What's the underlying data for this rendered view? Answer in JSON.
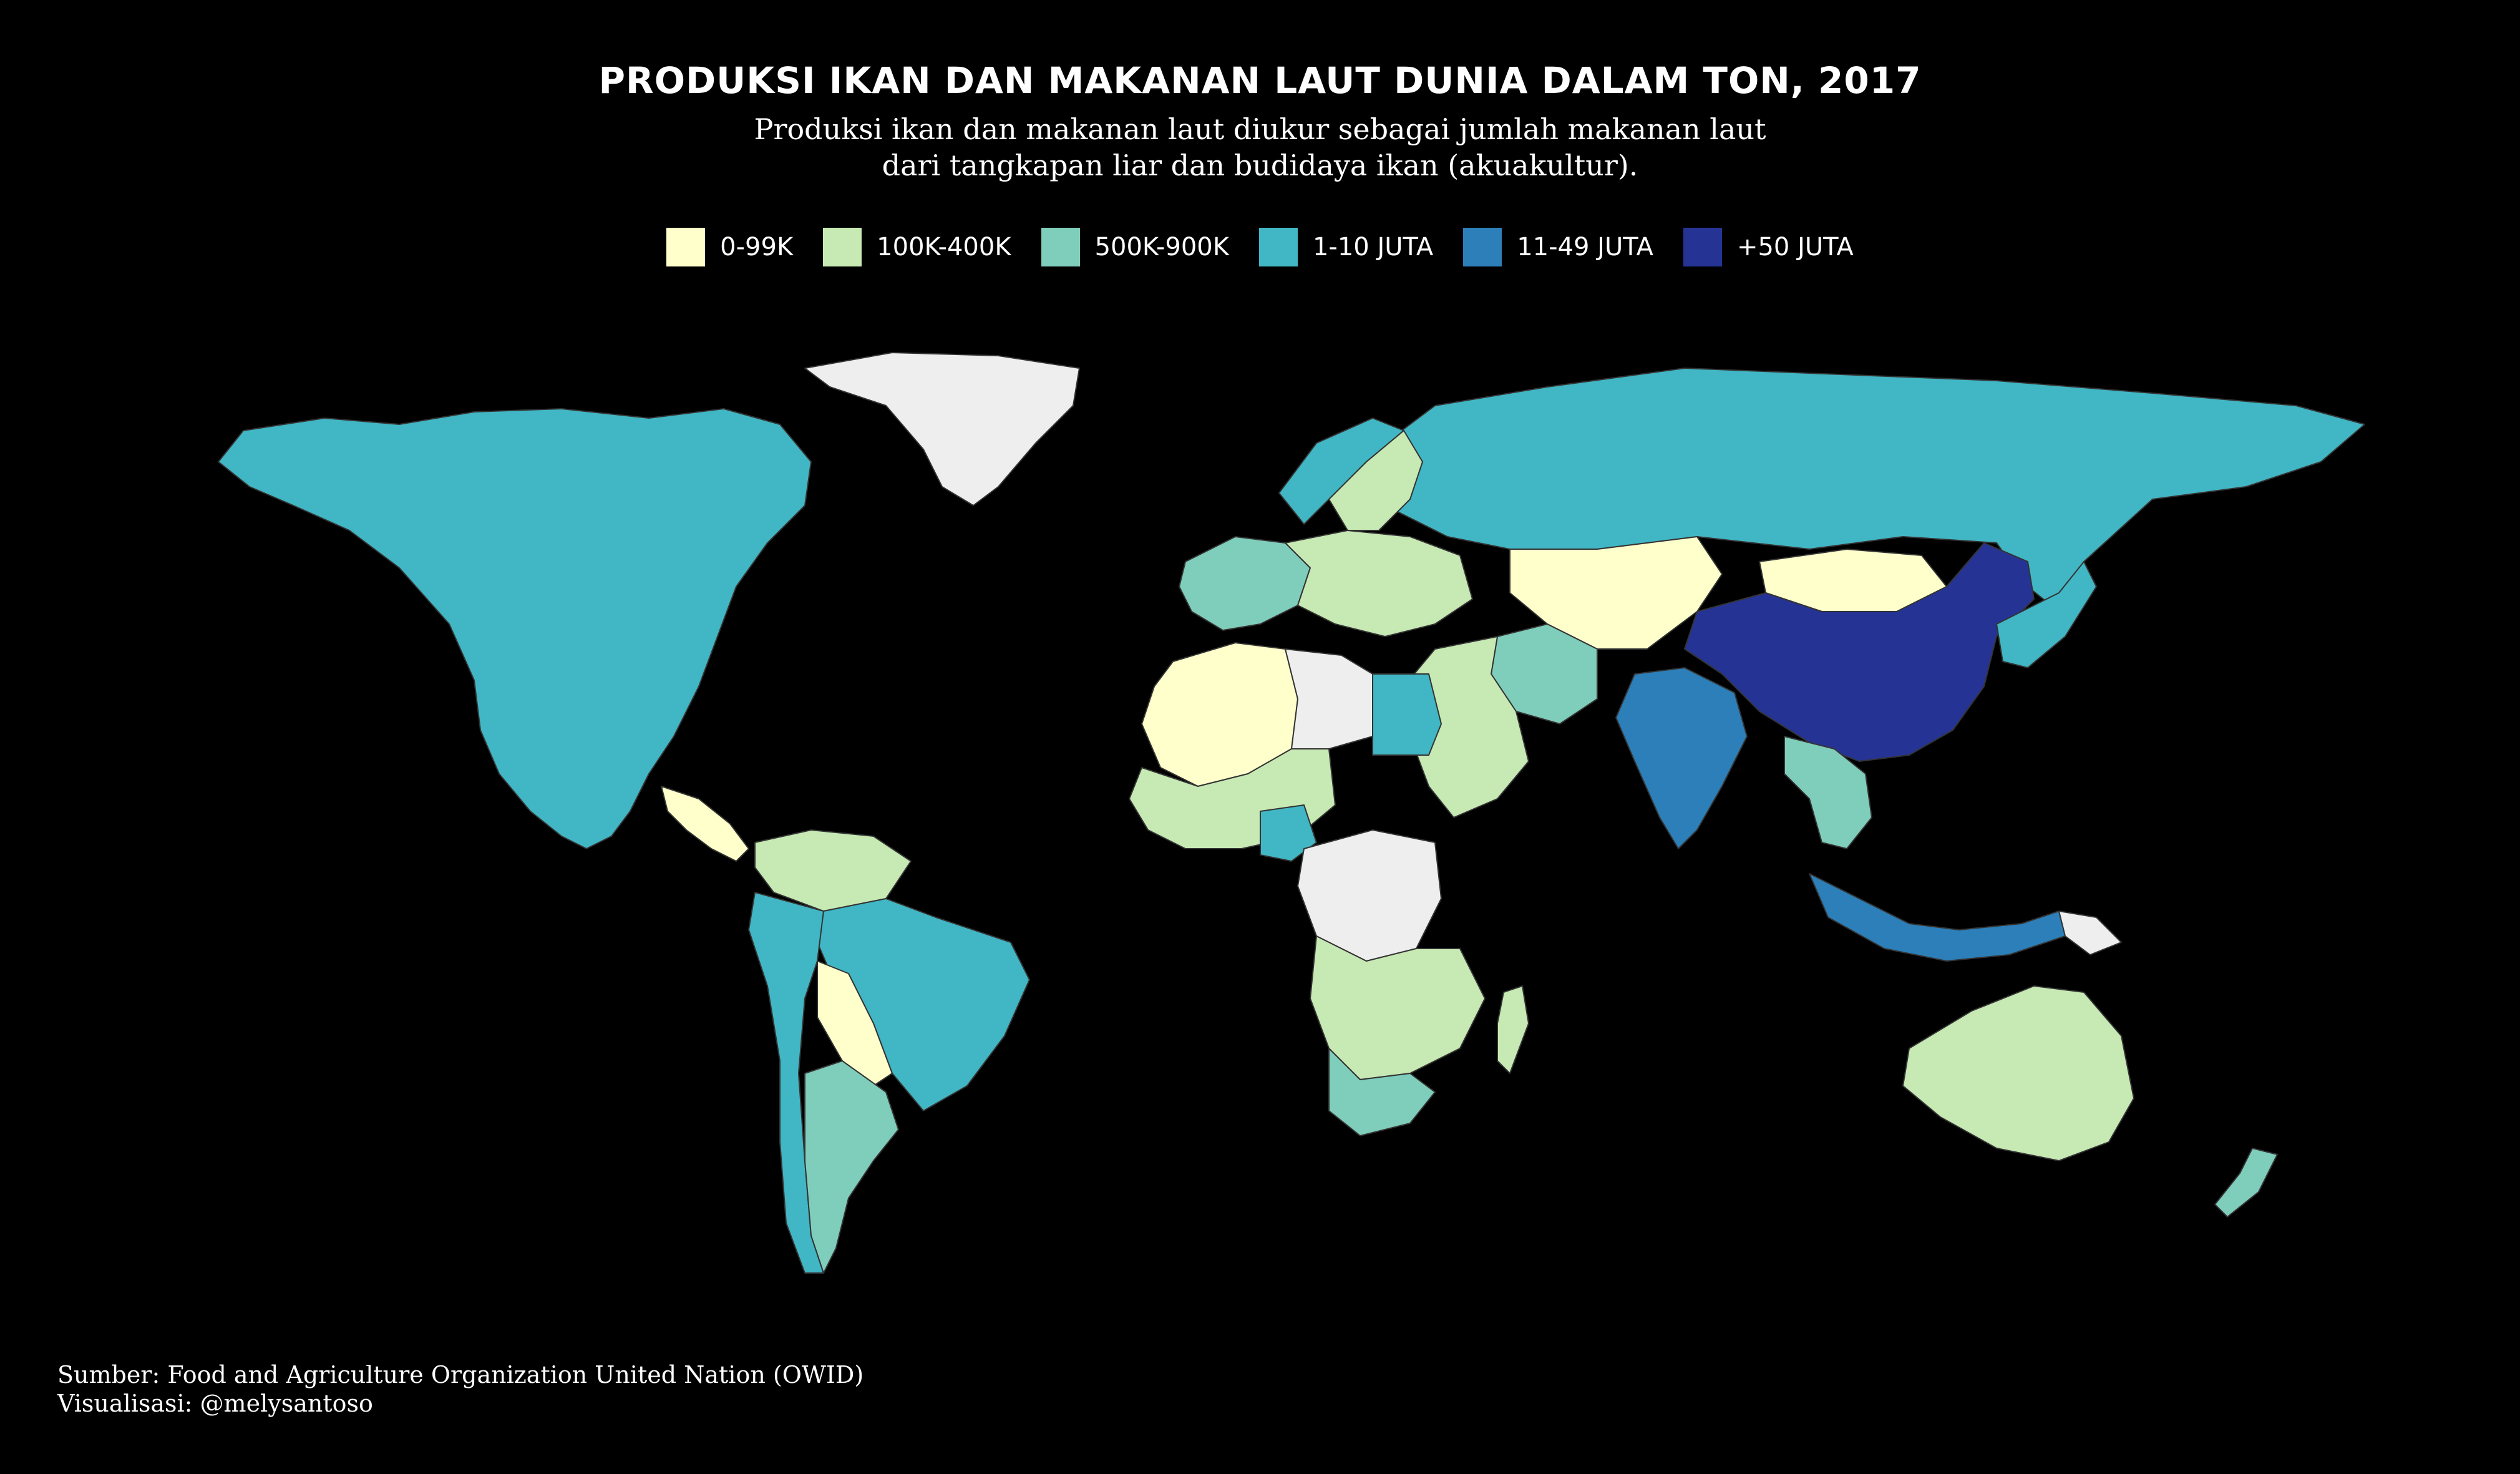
{
  "title": "PRODUKSI IKAN DAN MAKANAN LAUT DUNIA DALAM TON, 2017",
  "subtitle": {
    "line1": "Produksi ikan dan makanan laut diukur sebagai jumlah makanan laut",
    "line2": "dari tangkapan liar dan budidaya ikan (akuakultur)."
  },
  "legend": [
    {
      "label": "0-99K",
      "color": "#ffffcc"
    },
    {
      "label": "100K-400K",
      "color": "#c7e9b4"
    },
    {
      "label": "500K-900K",
      "color": "#7fcdbb"
    },
    {
      "label": "1-10 JUTA",
      "color": "#41b6c4"
    },
    {
      "label": "11-49 JUTA",
      "color": "#2c7fb8"
    },
    {
      "label": "+50 JUTA",
      "color": "#253494"
    }
  ],
  "no_data_color": "#eeeeee",
  "map_regions": [
    {
      "region": "north-america",
      "class": "1-10 JUTA"
    },
    {
      "region": "greenland",
      "class": "no-data"
    },
    {
      "region": "central-america",
      "class": "0-99K"
    },
    {
      "region": "south-america-north",
      "class": "100K-400K"
    },
    {
      "region": "brazil",
      "class": "1-10 JUTA"
    },
    {
      "region": "peru-chile",
      "class": "1-10 JUTA"
    },
    {
      "region": "argentina",
      "class": "500K-900K"
    },
    {
      "region": "bolivia-paraguay",
      "class": "0-99K"
    },
    {
      "region": "russia",
      "class": "1-10 JUTA"
    },
    {
      "region": "scandinavia",
      "class": "100K-400K"
    },
    {
      "region": "norway",
      "class": "1-10 JUTA"
    },
    {
      "region": "western-europe",
      "class": "500K-900K"
    },
    {
      "region": "eastern-europe",
      "class": "100K-400K"
    },
    {
      "region": "central-asia",
      "class": "0-99K"
    },
    {
      "region": "iran-region",
      "class": "500K-900K"
    },
    {
      "region": "middle-east",
      "class": "100K-400K"
    },
    {
      "region": "north-africa",
      "class": "0-99K"
    },
    {
      "region": "libya",
      "class": "no-data"
    },
    {
      "region": "egypt",
      "class": "1-10 JUTA"
    },
    {
      "region": "west-africa",
      "class": "100K-400K"
    },
    {
      "region": "nigeria",
      "class": "1-10 JUTA"
    },
    {
      "region": "central-africa",
      "class": "no-data"
    },
    {
      "region": "southern-africa",
      "class": "100K-400K"
    },
    {
      "region": "south-africa",
      "class": "500K-900K"
    },
    {
      "region": "madagascar",
      "class": "100K-400K"
    },
    {
      "region": "india",
      "class": "11-49 JUTA"
    },
    {
      "region": "china",
      "class": "+50 JUTA"
    },
    {
      "region": "mongolia",
      "class": "0-99K"
    },
    {
      "region": "southeast-asia",
      "class": "500K-900K"
    },
    {
      "region": "japan-korea",
      "class": "1-10 JUTA"
    },
    {
      "region": "indonesia",
      "class": "11-49 JUTA"
    },
    {
      "region": "papua-new-guinea",
      "class": "no-data"
    },
    {
      "region": "australia",
      "class": "100K-400K"
    },
    {
      "region": "new-zealand",
      "class": "500K-900K"
    }
  ],
  "source": {
    "line1": "Sumber: Food and Agriculture Organization United Nation (OWID)",
    "line2": "Visualisasi: @melysantoso"
  }
}
